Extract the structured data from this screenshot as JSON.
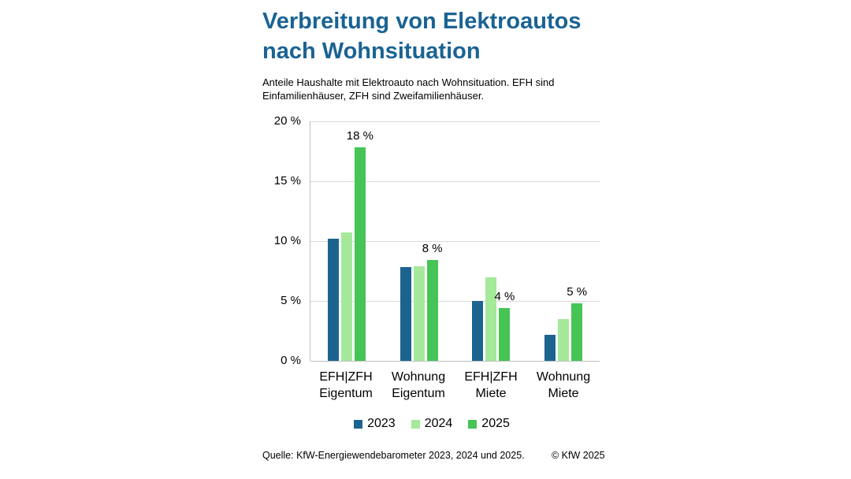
{
  "header": {
    "title_line1": "Verbreitung von Elektroautos",
    "title_line2": "nach Wohnsituation",
    "subtitle_line1": "Anteile Haushalte mit Elektroauto nach Wohnsituation. EFH sind",
    "subtitle_line2": "Einfamilienhäuser, ZFH sind Zweifamilienhäuser."
  },
  "chart_data": {
    "type": "bar",
    "title": "Verbreitung von Elektroautos nach Wohnsituation",
    "subtitle": "Anteile Haushalte mit Elektroauto nach Wohnsituation. EFH sind Einfamilienhäuser, ZFH sind Zweifamilienhäuser.",
    "categories": [
      "EFH|ZFH\nEigentum",
      "Wohnung\nEigentum",
      "EFH|ZFH\nMiete",
      "Wohnung\nMiete"
    ],
    "series": [
      {
        "name": "2023",
        "color": "#1d6390",
        "values": [
          10.2,
          7.8,
          5.0,
          2.2
        ]
      },
      {
        "name": "2024",
        "color": "#a5e99b",
        "values": [
          10.7,
          7.9,
          7.0,
          3.5
        ]
      },
      {
        "name": "2025",
        "color": "#46c455",
        "values": [
          17.8,
          8.4,
          4.4,
          4.8
        ]
      }
    ],
    "bar_labels": [
      {
        "series": "2025",
        "labels": [
          "18 %",
          "8 %",
          "4 %",
          "5 %"
        ]
      }
    ],
    "ylim": [
      0,
      20
    ],
    "ytick_values": [
      20,
      15,
      10,
      5,
      0
    ],
    "yticks": [
      "20 %",
      "15 %",
      "10 %",
      "5 %",
      "0 %"
    ],
    "grid": "horizontal",
    "legend_position": "bottom"
  },
  "legend": [
    {
      "label": "2023",
      "color": "#1d6390"
    },
    {
      "label": "2024",
      "color": "#a5e99b"
    },
    {
      "label": "2025",
      "color": "#46c455"
    }
  ],
  "footer": {
    "source": "Quelle: KfW-Energiewendebarometer 2023, 2024 und 2025.",
    "copyright": "© KfW 2025"
  }
}
